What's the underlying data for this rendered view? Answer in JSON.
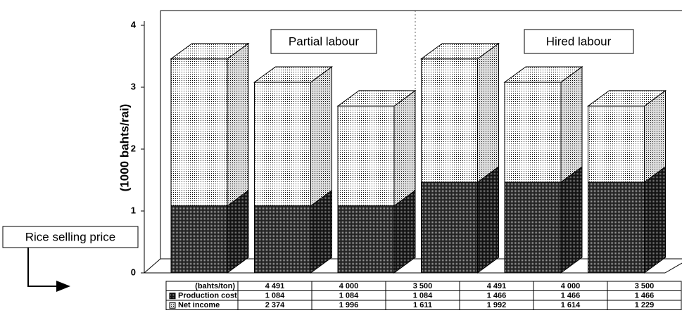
{
  "chart_data": {
    "type": "bar",
    "stacked": true,
    "categories": [
      "4 491",
      "4 000",
      "3 500",
      "4 491",
      "4 000",
      "3 500"
    ],
    "series": [
      {
        "name": "Production cost",
        "color": "#555555",
        "values": [
          1.084,
          1.084,
          1.084,
          1.466,
          1.466,
          1.466
        ],
        "value_labels": [
          "1 084",
          "1 084",
          "1 084",
          "1 466",
          "1 466",
          "1 466"
        ]
      },
      {
        "name": "Net income",
        "color": "#ffffff",
        "values": [
          2.374,
          1.996,
          1.611,
          1.992,
          1.614,
          1.229
        ],
        "value_labels": [
          "2 374",
          "1 996",
          "1 611",
          "1 992",
          "1 614",
          "1 229"
        ]
      }
    ],
    "ylabel": "(1000 bahts/rai)",
    "ylim": [
      0,
      4
    ],
    "yticks": [
      0,
      1,
      2,
      3,
      4
    ],
    "annotations": [
      "Partial labour",
      "Hired labour"
    ],
    "x_label": "Rice selling price",
    "x_unit": "(bahts/ton)"
  }
}
